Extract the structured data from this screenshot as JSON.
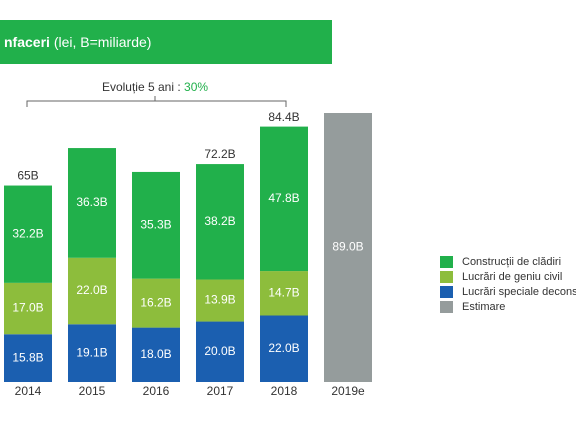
{
  "chart_data": {
    "type": "stacked-bar",
    "title": "nfaceri",
    "subtitle": "(lei, B=miliarde)",
    "annotation": {
      "text": "Evoluție 5 ani : ",
      "highlight": "30%"
    },
    "categories": [
      "2014",
      "2015",
      "2016",
      "2017",
      "2018",
      "2019e"
    ],
    "series": [
      {
        "name": "Construcții de clădiri",
        "color": "#21b04b",
        "values": [
          32.2,
          36.3,
          35.3,
          38.2,
          47.8,
          null
        ],
        "value_labels": [
          "32.2B",
          "36.3B",
          "35.3B",
          "38.2B",
          "47.8B",
          null
        ]
      },
      {
        "name": "Lucrări de geniu civil",
        "color": "#8dbd3c",
        "values": [
          17.0,
          22.0,
          16.2,
          13.9,
          14.7,
          null
        ],
        "value_labels": [
          "17.0B",
          "22.0B",
          "16.2B",
          "13.9B",
          "14.7B",
          null
        ]
      },
      {
        "name": "Lucrări speciale deconstr",
        "color": "#1b5fb0",
        "values": [
          15.8,
          19.1,
          18.0,
          20.0,
          22.0,
          null
        ],
        "value_labels": [
          "15.8B",
          "19.1B",
          "18.0B",
          "20.0B",
          "22.0B",
          null
        ]
      },
      {
        "name": "Estimare",
        "color": "#959c9c",
        "values": [
          null,
          null,
          null,
          null,
          null,
          89.0
        ],
        "value_labels": [
          null,
          null,
          null,
          null,
          null,
          "89.0B"
        ]
      }
    ],
    "totals": {
      "values": [
        65,
        null,
        null,
        72.2,
        84.4,
        null
      ],
      "value_labels": [
        "65B",
        null,
        null,
        "72.2B",
        "84.4B",
        null
      ]
    }
  }
}
